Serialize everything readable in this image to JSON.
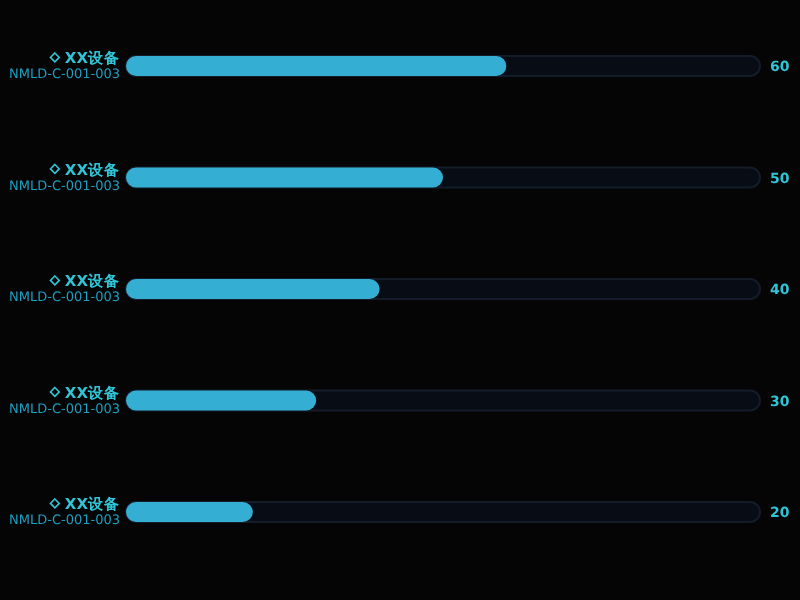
{
  "chart_data": {
    "type": "bar",
    "orientation": "horizontal",
    "data_labels": true,
    "xlim": [
      0,
      100
    ],
    "color": "#34aed2",
    "categories": [
      "XX设备\nNMLD-C-001-003",
      "XX设备\nNMLD-C-001-003",
      "XX设备\nNMLD-C-001-003",
      "XX设备\nNMLD-C-001-003",
      "XX设备\nNMLD-C-001-003"
    ],
    "values": [
      60,
      50,
      40,
      30,
      20
    ]
  }
}
